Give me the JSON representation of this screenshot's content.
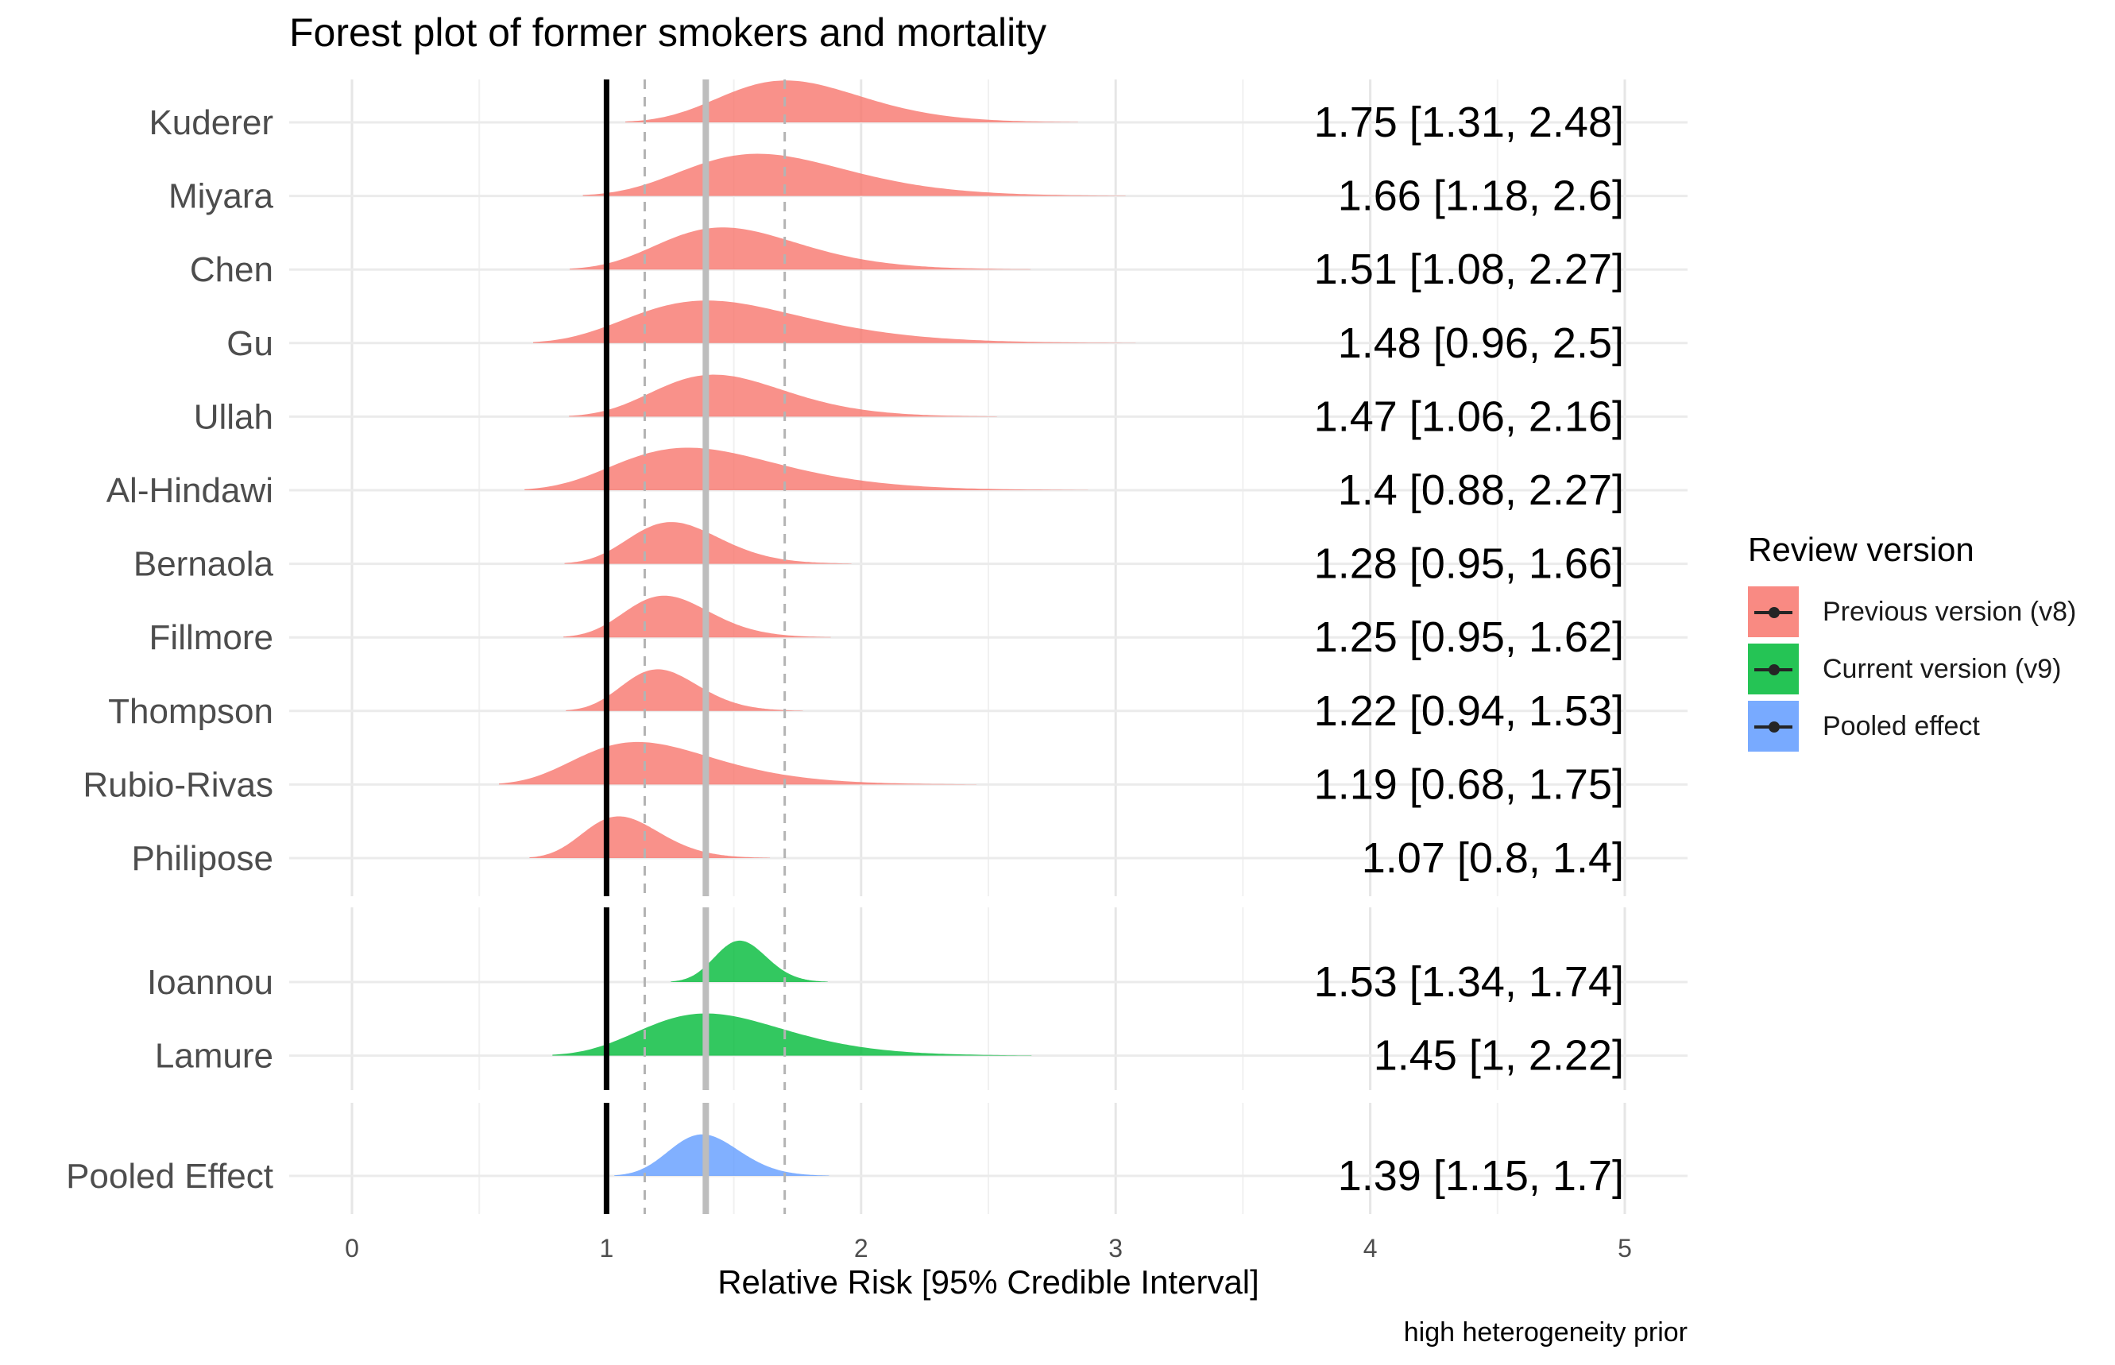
{
  "chart_data": {
    "type": "forest_density",
    "title": "Forest plot of former smokers and mortality",
    "xlabel": "Relative Risk [95% Credible Interval]",
    "caption": "high heterogeneity prior",
    "xlim": [
      0,
      5
    ],
    "xticks": [
      0,
      1,
      2,
      3,
      4,
      5
    ],
    "reference_line": 1,
    "pooled_estimate": 1.39,
    "pooled_interval": [
      1.15,
      1.7
    ],
    "legend": {
      "title": "Review version",
      "placement": "right",
      "items": [
        {
          "label": "Previous version (v8)",
          "color": "#F8766D"
        },
        {
          "label": "Current version (v9)",
          "color": "#00BA38"
        },
        {
          "label": "Pooled effect",
          "color": "#619CFF"
        }
      ]
    },
    "groups": [
      {
        "name": "Previous version (v8)",
        "color": "#F8766D",
        "studies": [
          {
            "study": "Kuderer",
            "estimate": 1.75,
            "lower": 1.31,
            "upper": 2.48,
            "label": "1.75 [1.31, 2.48]"
          },
          {
            "study": "Miyara",
            "estimate": 1.66,
            "lower": 1.18,
            "upper": 2.6,
            "label": "1.66 [1.18, 2.6]"
          },
          {
            "study": "Chen",
            "estimate": 1.51,
            "lower": 1.08,
            "upper": 2.27,
            "label": "1.51 [1.08, 2.27]"
          },
          {
            "study": "Gu",
            "estimate": 1.48,
            "lower": 0.96,
            "upper": 2.5,
            "label": "1.48 [0.96, 2.5]"
          },
          {
            "study": "Ullah",
            "estimate": 1.47,
            "lower": 1.06,
            "upper": 2.16,
            "label": "1.47 [1.06, 2.16]"
          },
          {
            "study": "Al-Hindawi",
            "estimate": 1.4,
            "lower": 0.88,
            "upper": 2.27,
            "label": "1.4 [0.88, 2.27]"
          },
          {
            "study": "Bernaola",
            "estimate": 1.28,
            "lower": 0.95,
            "upper": 1.66,
            "label": "1.28 [0.95, 1.66]"
          },
          {
            "study": "Fillmore",
            "estimate": 1.25,
            "lower": 0.95,
            "upper": 1.62,
            "label": "1.25 [0.95, 1.62]"
          },
          {
            "study": "Thompson",
            "estimate": 1.22,
            "lower": 0.94,
            "upper": 1.53,
            "label": "1.22 [0.94, 1.53]"
          },
          {
            "study": "Rubio-Rivas",
            "estimate": 1.19,
            "lower": 0.68,
            "upper": 1.75,
            "label": "1.19 [0.68, 1.75]"
          },
          {
            "study": "Philipose",
            "estimate": 1.07,
            "lower": 0.8,
            "upper": 1.4,
            "label": "1.07 [0.8, 1.4]"
          }
        ]
      },
      {
        "name": "Current version (v9)",
        "color": "#00BA38",
        "studies": [
          {
            "study": "Ioannou",
            "estimate": 1.53,
            "lower": 1.34,
            "upper": 1.74,
            "label": "1.53 [1.34, 1.74]"
          },
          {
            "study": "Lamure",
            "estimate": 1.45,
            "lower": 1,
            "upper": 2.22,
            "label": "1.45 [1, 2.22]"
          }
        ]
      },
      {
        "name": "Pooled effect",
        "color": "#619CFF",
        "studies": [
          {
            "study": "Pooled Effect",
            "estimate": 1.39,
            "lower": 1.15,
            "upper": 1.7,
            "label": "1.39 [1.15, 1.7]"
          }
        ]
      }
    ]
  }
}
